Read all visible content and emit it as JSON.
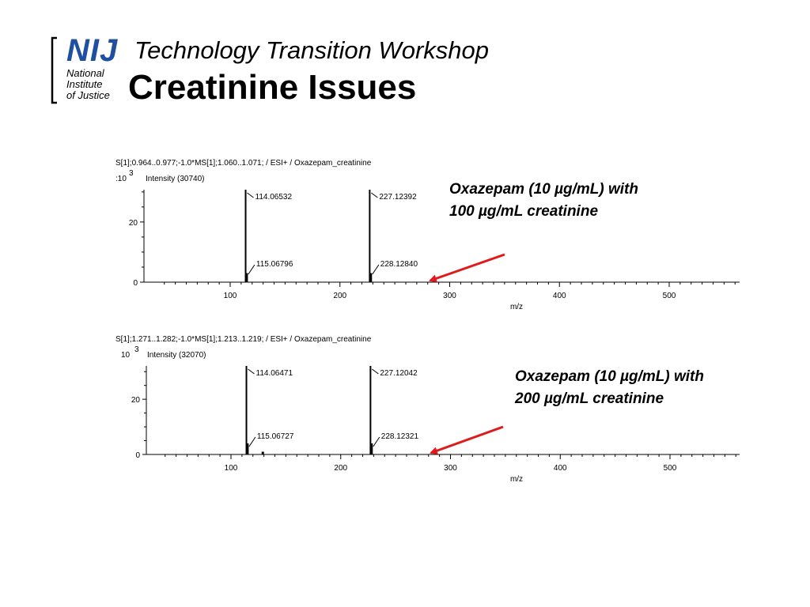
{
  "logo": {
    "text": "NIJ",
    "line1": "National",
    "line2": "Institute",
    "line3": "of Justice",
    "color": "#1f4fa0"
  },
  "header": {
    "subtitle": "Technology Transition Workshop",
    "title": "Creatinine Issues"
  },
  "arrow_color": "#e01a1a",
  "chart_data": [
    {
      "type": "bar",
      "title": "S[1];0.964..0.977;-1.0*MS[1];1.060..1.071; / ESI+ / Oxazepam_creatinine",
      "scale_prefix": ":10",
      "scale_exp": "3",
      "ylabel": "Intensity (30740)",
      "xlabel": "m/z",
      "xlim": [
        30,
        567
      ],
      "ylim": [
        0,
        30.74
      ],
      "x_ticks": [
        100,
        200,
        300,
        400,
        500
      ],
      "x_tick_labels": [
        "100",
        "200",
        "300",
        "400",
        "500"
      ],
      "y_ticks": [
        0,
        20
      ],
      "y_tick_labels": [
        "0",
        "20"
      ],
      "peaks": [
        {
          "x": 114.06532,
          "y": 30.74,
          "label": "114.06532"
        },
        {
          "x": 115.06796,
          "y": 3.0,
          "label": "115.06796"
        },
        {
          "x": 227.12392,
          "y": 30.74,
          "label": "227.12392"
        },
        {
          "x": 228.1284,
          "y": 3.0,
          "label": "228.12840"
        },
        {
          "x": 287,
          "y": 0.5,
          "label": ""
        }
      ],
      "annotation": {
        "line1": "Oxazepam (10 µg/mL) with",
        "line2": "100 µg/mL creatinine"
      },
      "arrow_target_mz": 288
    },
    {
      "type": "bar",
      "title": "S[1];1.271..1.282;-1.0*MS[1];1.213..1.219; / ESI+ / Oxazepam_creatinine",
      "scale_prefix": "10",
      "scale_exp": "3",
      "ylabel": "Intensity (32070)",
      "xlabel": "m/z",
      "xlim": [
        30,
        567
      ],
      "ylim": [
        0,
        32.07
      ],
      "x_ticks": [
        100,
        200,
        300,
        400,
        500
      ],
      "x_tick_labels": [
        "100",
        "200",
        "300",
        "400",
        "500"
      ],
      "y_ticks": [
        0,
        20
      ],
      "y_tick_labels": [
        "0",
        "20"
      ],
      "peaks": [
        {
          "x": 114.06471,
          "y": 32.07,
          "label": "114.06471"
        },
        {
          "x": 115.06727,
          "y": 4.0,
          "label": "115.06727"
        },
        {
          "x": 129.0,
          "y": 1.0,
          "label": ""
        },
        {
          "x": 227.12042,
          "y": 32.07,
          "label": "227.12042"
        },
        {
          "x": 228.12321,
          "y": 4.0,
          "label": "228.12321"
        }
      ],
      "annotation": {
        "line1": "Oxazepam (10 µg/mL) with",
        "line2": "200 µg/mL creatinine"
      },
      "arrow_target_mz": 288
    }
  ]
}
